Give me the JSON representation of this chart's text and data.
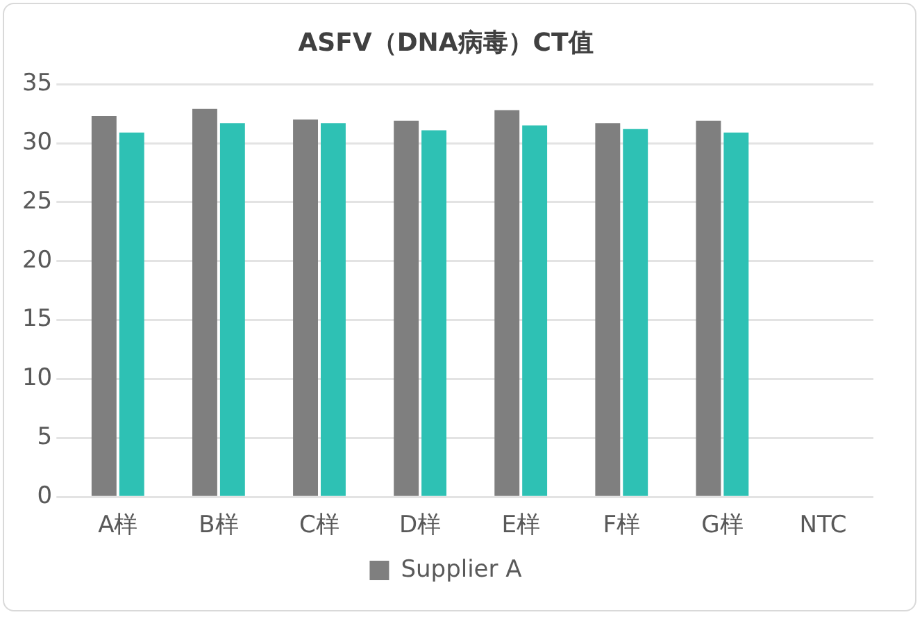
{
  "chart_data": {
    "type": "bar",
    "title": "ASFV（DNA病毒）CT值",
    "categories": [
      "A样",
      "B样",
      "C样",
      "D样",
      "E样",
      "F样",
      "G样",
      "NTC"
    ],
    "series": [
      {
        "name": "Supplier A",
        "color": "#7f7f7f",
        "values": [
          32.3,
          32.9,
          32.0,
          31.9,
          32.8,
          31.7,
          31.9,
          null
        ]
      },
      {
        "color": "#2ec1b4",
        "values": [
          30.9,
          31.7,
          31.7,
          31.1,
          31.5,
          31.2,
          30.9,
          null
        ]
      }
    ],
    "ylim": [
      0,
      35
    ],
    "yticks": [
      0,
      5,
      10,
      15,
      20,
      25,
      30,
      35
    ],
    "grid": "y",
    "legend": "bottom"
  }
}
